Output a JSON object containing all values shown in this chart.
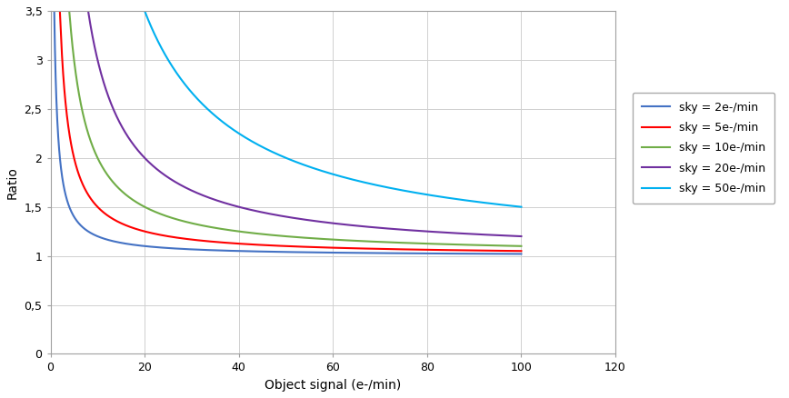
{
  "title": "",
  "xlabel": "Object signal (e-/min)",
  "ylabel": "Ratio",
  "xlim": [
    0,
    120
  ],
  "ylim": [
    0,
    3.5
  ],
  "yticks": [
    0,
    0.5,
    1,
    1.5,
    2,
    2.5,
    3,
    3.5
  ],
  "ytick_labels": [
    "0",
    "0,5",
    "1",
    "1,5",
    "2",
    "2,5",
    "3",
    "3,5"
  ],
  "xticks": [
    0,
    20,
    40,
    60,
    80,
    100,
    120
  ],
  "series": [
    {
      "label": "sky = 2e-/min",
      "sky": 2,
      "color": "#4472C4",
      "linewidth": 1.5
    },
    {
      "label": "sky = 5e-/min",
      "sky": 5,
      "color": "#FF0000",
      "linewidth": 1.5
    },
    {
      "label": "sky = 10e-/min",
      "sky": 10,
      "color": "#70AD47",
      "linewidth": 1.5
    },
    {
      "label": "sky = 20e-/min",
      "sky": 20,
      "color": "#7030A0",
      "linewidth": 1.5
    },
    {
      "label": "sky = 50e-/min",
      "sky": 50,
      "color": "#00B0F0",
      "linewidth": 1.5
    }
  ],
  "x_start": 0.5,
  "x_end": 100,
  "n_points": 2000,
  "background_color": "#FFFFFF",
  "plot_bg_color": "#FFFFFF",
  "grid_color": "#D0D0D0",
  "legend_fontsize": 9,
  "axis_fontsize": 10,
  "tick_fontsize": 9,
  "spine_color": "#A0A0A0",
  "figure_width": 8.68,
  "figure_height": 4.38,
  "dpi": 100
}
